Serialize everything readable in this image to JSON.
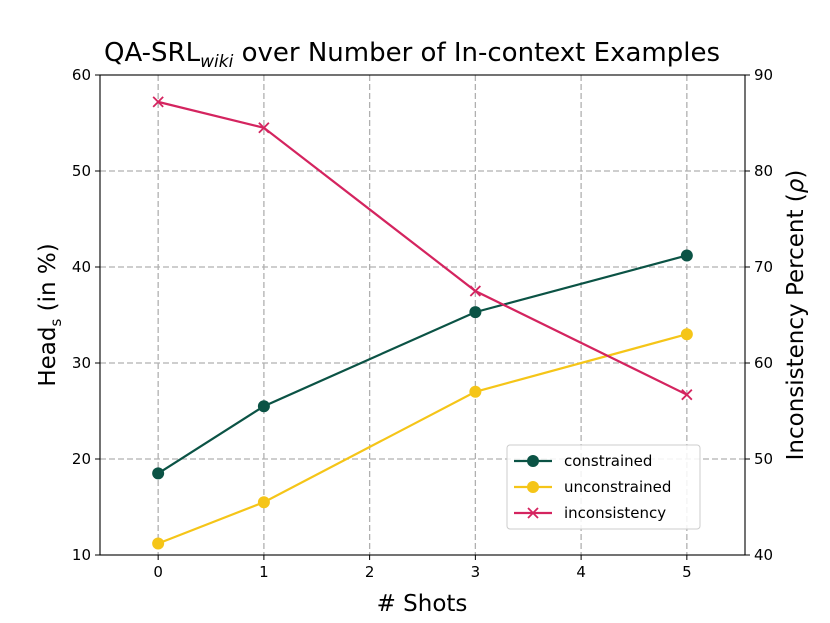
{
  "chart_data": {
    "type": "line",
    "title": {
      "main": "QA-SRL",
      "sub": "wiki",
      "rest": " over Number of In-context Examples"
    },
    "xlabel": "# Shots",
    "ylabel_left": {
      "main": "Head",
      "sub": "s",
      "rest": " (in %)"
    },
    "ylabel_right": {
      "main": "Inconsistency Percent (",
      "symbol": "ρ",
      "rest": ")"
    },
    "x": [
      0,
      1,
      3,
      5
    ],
    "xticks": [
      "0",
      "1",
      "2",
      "3",
      "4",
      "5"
    ],
    "xlim": [
      -0.55,
      5.55
    ],
    "ylim_left": [
      10,
      60
    ],
    "yticks_left": [
      "10",
      "20",
      "30",
      "40",
      "50",
      "60"
    ],
    "ylim_right": [
      40,
      90
    ],
    "yticks_right": [
      "40",
      "50",
      "60",
      "70",
      "80",
      "90"
    ],
    "grid": true,
    "legend_position": "lower-right",
    "series": [
      {
        "name": "constrained",
        "axis": "left",
        "marker": "circle",
        "color": "#0b5345",
        "values": [
          18.5,
          25.5,
          35.3,
          41.2
        ]
      },
      {
        "name": "unconstrained",
        "axis": "left",
        "marker": "circle",
        "color": "#f5c518",
        "values": [
          11.2,
          15.5,
          27.0,
          33.0
        ]
      },
      {
        "name": "inconsistency",
        "axis": "right",
        "marker": "x",
        "color": "#d4245f",
        "values": [
          87.2,
          84.5,
          67.5,
          56.7
        ]
      }
    ]
  }
}
